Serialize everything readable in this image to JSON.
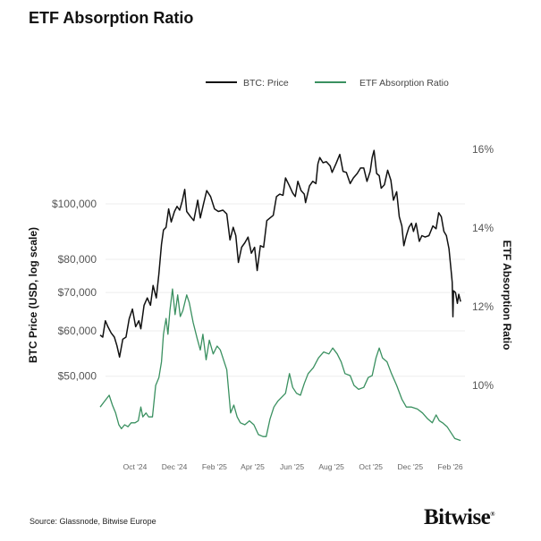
{
  "title": "ETF Absorption Ratio",
  "source": "Source: Glassnode, Bitwise Europe",
  "logo": "Bitwise",
  "colors": {
    "price": "#111111",
    "etf": "#3a9060",
    "grid": "#eeeeee"
  },
  "chart_data": {
    "type": "line",
    "legend": [
      "BTC: Price",
      "ETF Absorption Ratio"
    ],
    "legend_position": "top",
    "grid": true,
    "y_left": {
      "label": "BTC Price (USD, log scale)",
      "scale": "log",
      "ticks": [
        50000,
        60000,
        70000,
        80000,
        100000
      ],
      "tick_labels": [
        "$50,000",
        "$60,000",
        "$70,000",
        "$80,000",
        "$100,000"
      ]
    },
    "y_right": {
      "label": "ETF Absorption Ratio",
      "ticks": [
        10,
        12,
        14,
        16
      ],
      "tick_labels": [
        "10%",
        "12%",
        "14%",
        "16%"
      ]
    },
    "x_ticks": [
      "2024-10-01",
      "2024-12-01",
      "2025-02-01",
      "2025-04-01",
      "2025-06-01",
      "2025-08-01",
      "2025-10-01",
      "2025-12-01",
      "2026-02-01"
    ],
    "x_tick_labels": [
      "Oct '24",
      "Dec '24",
      "Feb '25",
      "Apr '25",
      "Jun '25",
      "Aug '25",
      "Oct '25",
      "Dec '25",
      "Feb '26"
    ],
    "series": [
      {
        "name": "BTC: Price",
        "axis": "left",
        "points": [
          [
            "2024-08-08",
            59000
          ],
          [
            "2024-08-12",
            58500
          ],
          [
            "2024-08-16",
            62500
          ],
          [
            "2024-08-20",
            61000
          ],
          [
            "2024-08-25",
            59500
          ],
          [
            "2024-08-30",
            58500
          ],
          [
            "2024-09-03",
            56500
          ],
          [
            "2024-09-07",
            54000
          ],
          [
            "2024-09-12",
            58000
          ],
          [
            "2024-09-17",
            58500
          ],
          [
            "2024-09-22",
            63000
          ],
          [
            "2024-09-27",
            65500
          ],
          [
            "2024-10-02",
            61000
          ],
          [
            "2024-10-07",
            62500
          ],
          [
            "2024-10-10",
            60500
          ],
          [
            "2024-10-15",
            66500
          ],
          [
            "2024-10-20",
            68500
          ],
          [
            "2024-10-25",
            66500
          ],
          [
            "2024-10-29",
            72000
          ],
          [
            "2024-11-03",
            68500
          ],
          [
            "2024-11-07",
            75500
          ],
          [
            "2024-11-11",
            85000
          ],
          [
            "2024-11-14",
            90000
          ],
          [
            "2024-11-18",
            91000
          ],
          [
            "2024-11-22",
            98000
          ],
          [
            "2024-11-26",
            93000
          ],
          [
            "2024-12-01",
            97000
          ],
          [
            "2024-12-05",
            99000
          ],
          [
            "2024-12-09",
            97500
          ],
          [
            "2024-12-13",
            101000
          ],
          [
            "2024-12-17",
            106000
          ],
          [
            "2024-12-20",
            97000
          ],
          [
            "2024-12-26",
            95000
          ],
          [
            "2024-12-31",
            93500
          ],
          [
            "2025-01-06",
            101500
          ],
          [
            "2025-01-10",
            94500
          ],
          [
            "2025-01-15",
            100000
          ],
          [
            "2025-01-20",
            105500
          ],
          [
            "2025-01-26",
            103000
          ],
          [
            "2025-02-01",
            98000
          ],
          [
            "2025-02-07",
            97000
          ],
          [
            "2025-02-14",
            97500
          ],
          [
            "2025-02-20",
            96000
          ],
          [
            "2025-02-25",
            86500
          ],
          [
            "2025-03-02",
            91000
          ],
          [
            "2025-03-06",
            88000
          ],
          [
            "2025-03-10",
            79000
          ],
          [
            "2025-03-15",
            84000
          ],
          [
            "2025-03-20",
            85500
          ],
          [
            "2025-03-25",
            87500
          ],
          [
            "2025-03-30",
            82000
          ],
          [
            "2025-04-04",
            84000
          ],
          [
            "2025-04-08",
            76500
          ],
          [
            "2025-04-13",
            84500
          ],
          [
            "2025-04-18",
            84000
          ],
          [
            "2025-04-23",
            93500
          ],
          [
            "2025-04-28",
            94500
          ],
          [
            "2025-05-03",
            95500
          ],
          [
            "2025-05-08",
            103000
          ],
          [
            "2025-05-13",
            104000
          ],
          [
            "2025-05-18",
            103500
          ],
          [
            "2025-05-22",
            111000
          ],
          [
            "2025-05-28",
            107500
          ],
          [
            "2025-06-02",
            104500
          ],
          [
            "2025-06-06",
            103000
          ],
          [
            "2025-06-10",
            109500
          ],
          [
            "2025-06-15",
            105500
          ],
          [
            "2025-06-20",
            104000
          ],
          [
            "2025-06-22",
            100500
          ],
          [
            "2025-06-28",
            107500
          ],
          [
            "2025-07-03",
            109500
          ],
          [
            "2025-07-08",
            108500
          ],
          [
            "2025-07-11",
            117500
          ],
          [
            "2025-07-14",
            120500
          ],
          [
            "2025-07-19",
            118000
          ],
          [
            "2025-07-24",
            118500
          ],
          [
            "2025-07-30",
            116500
          ],
          [
            "2025-08-02",
            113500
          ],
          [
            "2025-08-08",
            117500
          ],
          [
            "2025-08-14",
            122000
          ],
          [
            "2025-08-19",
            114000
          ],
          [
            "2025-08-24",
            113500
          ],
          [
            "2025-08-30",
            108500
          ],
          [
            "2025-09-04",
            111000
          ],
          [
            "2025-09-10",
            113000
          ],
          [
            "2025-09-15",
            115500
          ],
          [
            "2025-09-20",
            115500
          ],
          [
            "2025-09-25",
            109500
          ],
          [
            "2025-09-30",
            114000
          ],
          [
            "2025-10-03",
            120500
          ],
          [
            "2025-10-06",
            124000
          ],
          [
            "2025-10-10",
            113000
          ],
          [
            "2025-10-14",
            112000
          ],
          [
            "2025-10-17",
            106500
          ],
          [
            "2025-10-22",
            108000
          ],
          [
            "2025-10-27",
            114500
          ],
          [
            "2025-11-01",
            110000
          ],
          [
            "2025-11-05",
            101500
          ],
          [
            "2025-11-10",
            105000
          ],
          [
            "2025-11-14",
            95000
          ],
          [
            "2025-11-18",
            91500
          ],
          [
            "2025-11-21",
            84500
          ],
          [
            "2025-11-25",
            88000
          ],
          [
            "2025-11-29",
            91000
          ],
          [
            "2025-12-03",
            92500
          ],
          [
            "2025-12-06",
            89500
          ],
          [
            "2025-12-10",
            92500
          ],
          [
            "2025-12-15",
            86000
          ],
          [
            "2025-12-19",
            88000
          ],
          [
            "2025-12-24",
            87500
          ],
          [
            "2025-12-30",
            88000
          ],
          [
            "2026-01-05",
            91500
          ],
          [
            "2026-01-10",
            90500
          ],
          [
            "2026-01-14",
            96500
          ],
          [
            "2026-01-18",
            95000
          ],
          [
            "2026-01-22",
            89500
          ],
          [
            "2026-01-26",
            88000
          ],
          [
            "2026-01-30",
            83500
          ],
          [
            "2026-02-02",
            77000
          ],
          [
            "2026-02-04",
            73000
          ],
          [
            "2026-02-05",
            63500
          ],
          [
            "2026-02-06",
            70500
          ],
          [
            "2026-02-09",
            70000
          ],
          [
            "2026-02-12",
            67000
          ],
          [
            "2026-02-14",
            69500
          ],
          [
            "2026-02-17",
            67500
          ]
        ]
      },
      {
        "name": "ETF Absorption Ratio",
        "axis": "right",
        "points": [
          [
            "2024-08-08",
            9.45
          ],
          [
            "2024-08-15",
            9.6
          ],
          [
            "2024-08-22",
            9.75
          ],
          [
            "2024-08-27",
            9.5
          ],
          [
            "2024-09-01",
            9.3
          ],
          [
            "2024-09-06",
            9.0
          ],
          [
            "2024-09-10",
            8.9
          ],
          [
            "2024-09-15",
            9.0
          ],
          [
            "2024-09-20",
            8.95
          ],
          [
            "2024-09-25",
            9.05
          ],
          [
            "2024-10-01",
            9.05
          ],
          [
            "2024-10-06",
            9.1
          ],
          [
            "2024-10-10",
            9.45
          ],
          [
            "2024-10-13",
            9.2
          ],
          [
            "2024-10-18",
            9.3
          ],
          [
            "2024-10-22",
            9.2
          ],
          [
            "2024-10-28",
            9.2
          ],
          [
            "2024-11-02",
            10.0
          ],
          [
            "2024-11-07",
            10.2
          ],
          [
            "2024-11-11",
            10.6
          ],
          [
            "2024-11-14",
            11.3
          ],
          [
            "2024-11-18",
            11.7
          ],
          [
            "2024-11-21",
            11.3
          ],
          [
            "2024-11-24",
            11.9
          ],
          [
            "2024-11-28",
            12.45
          ],
          [
            "2024-12-02",
            11.8
          ],
          [
            "2024-12-06",
            12.3
          ],
          [
            "2024-12-10",
            11.75
          ],
          [
            "2024-12-14",
            11.9
          ],
          [
            "2024-12-20",
            12.3
          ],
          [
            "2024-12-24",
            12.1
          ],
          [
            "2024-12-30",
            11.6
          ],
          [
            "2025-01-05",
            11.2
          ],
          [
            "2025-01-10",
            10.9
          ],
          [
            "2025-01-14",
            11.3
          ],
          [
            "2025-01-19",
            10.65
          ],
          [
            "2025-01-24",
            11.15
          ],
          [
            "2025-01-30",
            10.8
          ],
          [
            "2025-02-05",
            11.0
          ],
          [
            "2025-02-10",
            10.9
          ],
          [
            "2025-02-15",
            10.65
          ],
          [
            "2025-02-20",
            10.4
          ],
          [
            "2025-02-26",
            9.3
          ],
          [
            "2025-03-03",
            9.5
          ],
          [
            "2025-03-08",
            9.2
          ],
          [
            "2025-03-13",
            9.05
          ],
          [
            "2025-03-20",
            9.0
          ],
          [
            "2025-03-27",
            9.1
          ],
          [
            "2025-04-03",
            9.0
          ],
          [
            "2025-04-10",
            8.75
          ],
          [
            "2025-04-17",
            8.7
          ],
          [
            "2025-04-22",
            8.7
          ],
          [
            "2025-04-28",
            9.15
          ],
          [
            "2025-05-04",
            9.45
          ],
          [
            "2025-05-10",
            9.6
          ],
          [
            "2025-05-16",
            9.7
          ],
          [
            "2025-05-22",
            9.8
          ],
          [
            "2025-05-28",
            10.3
          ],
          [
            "2025-06-02",
            9.95
          ],
          [
            "2025-06-08",
            9.8
          ],
          [
            "2025-06-14",
            9.75
          ],
          [
            "2025-06-20",
            10.05
          ],
          [
            "2025-06-26",
            10.3
          ],
          [
            "2025-07-04",
            10.45
          ],
          [
            "2025-07-12",
            10.7
          ],
          [
            "2025-07-20",
            10.85
          ],
          [
            "2025-07-28",
            10.8
          ],
          [
            "2025-08-03",
            10.95
          ],
          [
            "2025-08-10",
            10.8
          ],
          [
            "2025-08-16",
            10.6
          ],
          [
            "2025-08-22",
            10.3
          ],
          [
            "2025-08-30",
            10.25
          ],
          [
            "2025-09-05",
            10.0
          ],
          [
            "2025-09-12",
            9.9
          ],
          [
            "2025-09-20",
            9.95
          ],
          [
            "2025-09-27",
            10.2
          ],
          [
            "2025-10-03",
            10.25
          ],
          [
            "2025-10-09",
            10.7
          ],
          [
            "2025-10-14",
            10.95
          ],
          [
            "2025-10-19",
            10.7
          ],
          [
            "2025-10-26",
            10.6
          ],
          [
            "2025-11-02",
            10.3
          ],
          [
            "2025-11-10",
            10.0
          ],
          [
            "2025-11-18",
            9.65
          ],
          [
            "2025-11-25",
            9.45
          ],
          [
            "2025-12-03",
            9.45
          ],
          [
            "2025-12-12",
            9.4
          ],
          [
            "2025-12-20",
            9.3
          ],
          [
            "2025-12-28",
            9.15
          ],
          [
            "2026-01-04",
            9.05
          ],
          [
            "2026-01-10",
            9.25
          ],
          [
            "2026-01-15",
            9.1
          ],
          [
            "2026-01-20",
            9.05
          ],
          [
            "2026-01-27",
            8.95
          ],
          [
            "2026-02-02",
            8.8
          ],
          [
            "2026-02-08",
            8.65
          ],
          [
            "2026-02-17",
            8.6
          ]
        ]
      }
    ]
  }
}
